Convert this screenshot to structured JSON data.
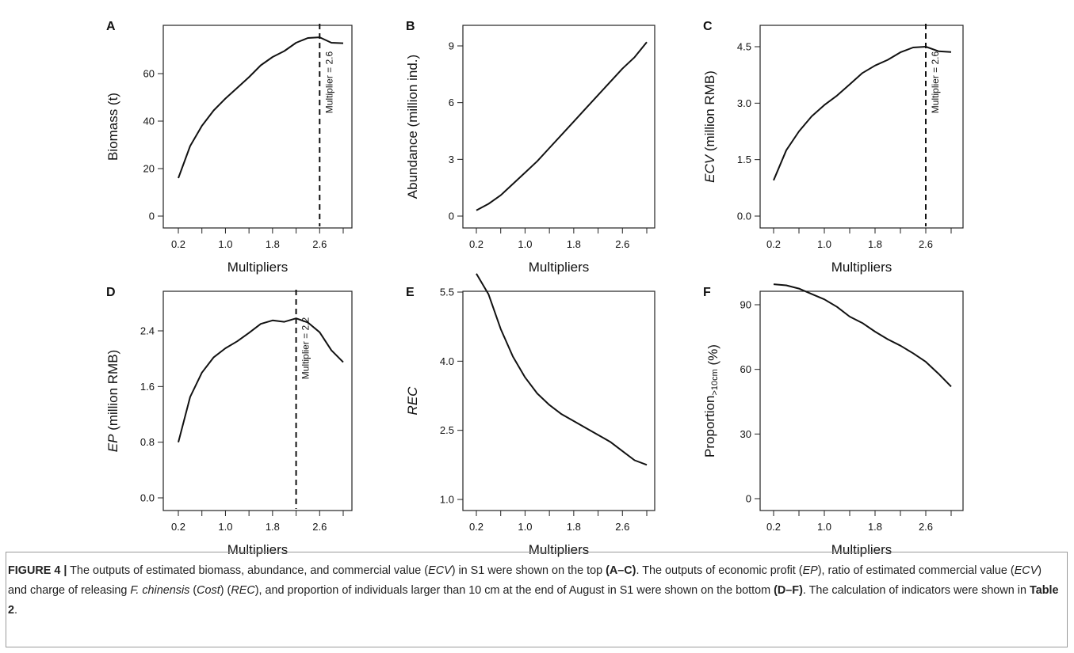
{
  "chart_data": [
    {
      "panel": "A",
      "type": "line",
      "ylabel_parts": [
        {
          "text": "Biomass  (t)",
          "italic": false
        }
      ],
      "xlabel": "Multipliers",
      "x": [
        0.2,
        0.4,
        0.6,
        0.8,
        1.0,
        1.2,
        1.4,
        1.6,
        1.8,
        2.0,
        2.2,
        2.4,
        2.6,
        2.8,
        3.0
      ],
      "values": [
        16,
        29.5,
        38,
        44.5,
        49.5,
        54,
        58.5,
        63.5,
        67,
        69.5,
        73,
        75,
        75.3,
        73,
        72.8
      ],
      "xlim": [
        0.2,
        3.0
      ],
      "ylim": [
        0,
        75
      ],
      "xticks": [
        0.2,
        0.6,
        1.0,
        1.4,
        1.8,
        2.2,
        2.6,
        3.0
      ],
      "xtick_labels": [
        "0.2",
        "",
        "1.0",
        "",
        "1.8",
        "",
        "2.6",
        ""
      ],
      "yticks": [
        0,
        20,
        40,
        60
      ],
      "ytick_labels": [
        "0",
        "20",
        "40",
        "60"
      ],
      "vline": {
        "x": 2.6,
        "label": "Multiplier = 2.6"
      }
    },
    {
      "panel": "B",
      "type": "line",
      "ylabel_parts": [
        {
          "text": "Abundance  (million ind.)",
          "italic": false
        }
      ],
      "xlabel": "Multipliers",
      "x": [
        0.2,
        0.4,
        0.6,
        0.8,
        1.0,
        1.2,
        1.4,
        1.6,
        1.8,
        2.0,
        2.2,
        2.4,
        2.6,
        2.8,
        3.0
      ],
      "values": [
        0.3,
        0.65,
        1.1,
        1.7,
        2.3,
        2.9,
        3.6,
        4.3,
        5.0,
        5.7,
        6.4,
        7.1,
        7.8,
        8.4,
        9.2
      ],
      "xlim": [
        0.2,
        3.0
      ],
      "ylim": [
        0,
        9
      ],
      "xticks": [
        0.2,
        0.6,
        1.0,
        1.4,
        1.8,
        2.2,
        2.6,
        3.0
      ],
      "xtick_labels": [
        "0.2",
        "",
        "1.0",
        "",
        "1.8",
        "",
        "2.6",
        ""
      ],
      "yticks": [
        0,
        3,
        6,
        9
      ],
      "ytick_labels": [
        "0",
        "3",
        "6",
        "9"
      ]
    },
    {
      "panel": "C",
      "type": "line",
      "ylabel_parts": [
        {
          "text": "ECV",
          "italic": true
        },
        {
          "text": "   (million RMB)",
          "italic": false
        }
      ],
      "xlabel": "Multipliers",
      "x": [
        0.2,
        0.4,
        0.6,
        0.8,
        1.0,
        1.2,
        1.4,
        1.6,
        1.8,
        2.0,
        2.2,
        2.4,
        2.6,
        2.8,
        3.0
      ],
      "values": [
        0.95,
        1.75,
        2.25,
        2.65,
        2.95,
        3.2,
        3.5,
        3.8,
        4.0,
        4.15,
        4.35,
        4.48,
        4.5,
        4.38,
        4.36
      ],
      "xlim": [
        0.2,
        3.0
      ],
      "ylim": [
        0,
        4.5
      ],
      "xticks": [
        0.2,
        0.6,
        1.0,
        1.4,
        1.8,
        2.2,
        2.6,
        3.0
      ],
      "xtick_labels": [
        "0.2",
        "",
        "1.0",
        "",
        "1.8",
        "",
        "2.6",
        ""
      ],
      "yticks": [
        0,
        1.5,
        3.0,
        4.5
      ],
      "ytick_labels": [
        "0.0",
        "1.5",
        "3.0",
        "4.5"
      ],
      "vline": {
        "x": 2.6,
        "label": "Multiplier = 2.6"
      }
    },
    {
      "panel": "D",
      "type": "line",
      "ylabel_parts": [
        {
          "text": "EP",
          "italic": true
        },
        {
          "text": "   (million RMB)",
          "italic": false
        }
      ],
      "xlabel": "Multipliers",
      "x": [
        0.2,
        0.4,
        0.6,
        0.8,
        1.0,
        1.2,
        1.4,
        1.6,
        1.8,
        2.0,
        2.2,
        2.4,
        2.6,
        2.8,
        3.0
      ],
      "values": [
        0.8,
        1.45,
        1.8,
        2.02,
        2.15,
        2.25,
        2.37,
        2.5,
        2.55,
        2.53,
        2.58,
        2.52,
        2.38,
        2.12,
        1.95
      ],
      "xlim": [
        0.2,
        3.0
      ],
      "ylim": [
        0,
        2.4
      ],
      "xticks": [
        0.2,
        0.6,
        1.0,
        1.4,
        1.8,
        2.2,
        2.6,
        3.0
      ],
      "xtick_labels": [
        "0.2",
        "",
        "1.0",
        "",
        "1.8",
        "",
        "2.6",
        ""
      ],
      "yticks": [
        0,
        0.8,
        1.6,
        2.4
      ],
      "ytick_labels": [
        "0.0",
        "0.8",
        "1.6",
        "2.4"
      ],
      "vline": {
        "x": 2.2,
        "label": "Multiplier = 2.2"
      }
    },
    {
      "panel": "E",
      "type": "line",
      "ylabel_parts": [
        {
          "text": "REC",
          "italic": true
        }
      ],
      "xlabel": "Multipliers",
      "x": [
        0.2,
        0.4,
        0.6,
        0.8,
        1.0,
        1.2,
        1.4,
        1.6,
        1.8,
        2.0,
        2.2,
        2.4,
        2.6,
        2.8,
        3.0
      ],
      "values": [
        5.9,
        5.45,
        4.7,
        4.1,
        3.65,
        3.3,
        3.05,
        2.85,
        2.7,
        2.55,
        2.4,
        2.25,
        2.05,
        1.85,
        1.75
      ],
      "xlim": [
        0.2,
        3.0
      ],
      "ylim": [
        1.0,
        5.5
      ],
      "xticks": [
        0.2,
        0.6,
        1.0,
        1.4,
        1.8,
        2.2,
        2.6,
        3.0
      ],
      "xtick_labels": [
        "0.2",
        "",
        "1.0",
        "",
        "1.8",
        "",
        "2.6",
        ""
      ],
      "yticks": [
        1.0,
        2.5,
        4.0,
        5.5
      ],
      "ytick_labels": [
        "1.0",
        "2.5",
        "4.0",
        "5.5"
      ]
    },
    {
      "panel": "F",
      "type": "line",
      "ylabel_parts": [
        {
          "text": "Proportion",
          "italic": false
        },
        {
          "text": ">10cm",
          "italic": false,
          "sub": true
        },
        {
          "text": " (%)",
          "italic": false
        }
      ],
      "xlabel": "Multipliers",
      "x": [
        0.2,
        0.4,
        0.6,
        0.8,
        1.0,
        1.2,
        1.4,
        1.6,
        1.8,
        2.0,
        2.2,
        2.4,
        2.6,
        2.8,
        3.0
      ],
      "values": [
        99.5,
        99,
        97.5,
        95,
        92.5,
        89,
        84.5,
        81.5,
        77.5,
        74,
        71,
        67.5,
        63.5,
        58,
        52
      ],
      "xlim": [
        0.2,
        3.0
      ],
      "ylim": [
        0,
        90
      ],
      "xticks": [
        0.2,
        0.6,
        1.0,
        1.4,
        1.8,
        2.2,
        2.6,
        3.0
      ],
      "xtick_labels": [
        "0.2",
        "",
        "1.0",
        "",
        "1.8",
        "",
        "2.6",
        ""
      ],
      "yticks": [
        0,
        30,
        60,
        90
      ],
      "ytick_labels": [
        "0",
        "30",
        "60",
        "90"
      ]
    }
  ],
  "caption": [
    {
      "text": "FIGURE 4 |",
      "b": true
    },
    {
      "text": " The outputs of estimated biomass, abundance, and commercial value ("
    },
    {
      "text": "ECV",
      "i": true
    },
    {
      "text": ") in S1 were shown on the top "
    },
    {
      "text": "(A–C)",
      "b": true
    },
    {
      "text": ". The outputs of economic profit ("
    },
    {
      "text": "EP",
      "i": true
    },
    {
      "text": "), ratio of estimated commercial value ("
    },
    {
      "text": "ECV",
      "i": true
    },
    {
      "text": ") and charge of releasing "
    },
    {
      "text": "F. chinensis",
      "i": true
    },
    {
      "text": " ("
    },
    {
      "text": "Cost",
      "i": true
    },
    {
      "text": ") ("
    },
    {
      "text": "REC",
      "i": true
    },
    {
      "text": "), and proportion of individuals larger than 10 cm at the end of August in S1 were shown on the bottom "
    },
    {
      "text": "(D–F)",
      "b": true
    },
    {
      "text": ". The calculation of indicators were shown in "
    },
    {
      "text": "Table 2",
      "b": true
    },
    {
      "text": "."
    }
  ]
}
